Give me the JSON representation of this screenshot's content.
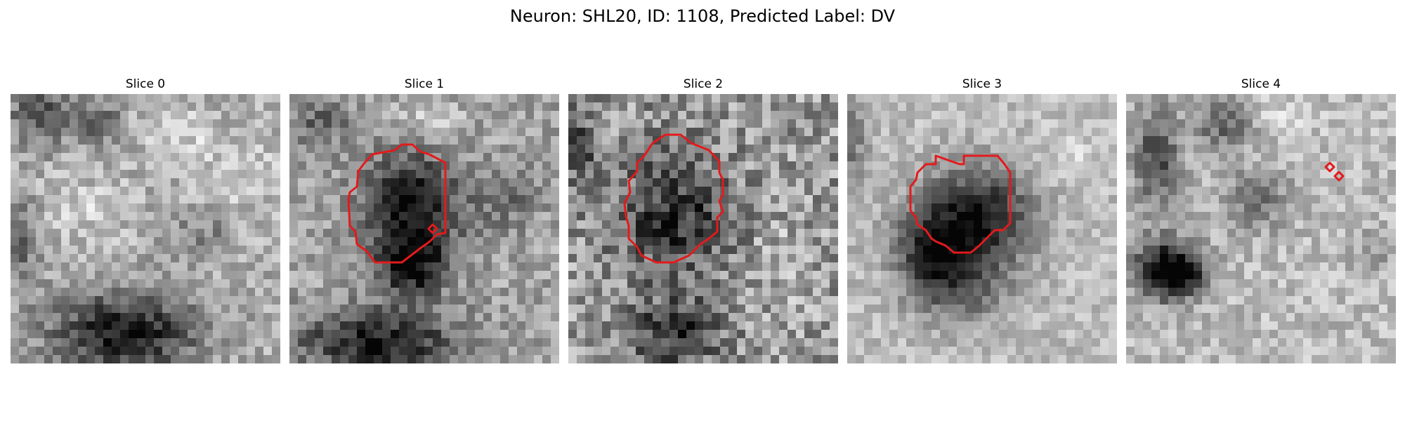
{
  "figure": {
    "suptitle": "Neuron: SHL20, ID: 1108, Predicted Label: DV",
    "contour_color": "#e31a1c",
    "colormap": "gray",
    "grid_size": 32
  },
  "panels": [
    {
      "title": "Slice 0",
      "contours": []
    },
    {
      "title": "Slice 1",
      "contours": [
        "large-outline",
        "small-diamond"
      ]
    },
    {
      "title": "Slice 2",
      "contours": [
        "large-outline"
      ]
    },
    {
      "title": "Slice 3",
      "contours": [
        "large-outline"
      ]
    },
    {
      "title": "Slice 4",
      "contours": [
        "small-diamond",
        "small-diamond"
      ]
    }
  ]
}
